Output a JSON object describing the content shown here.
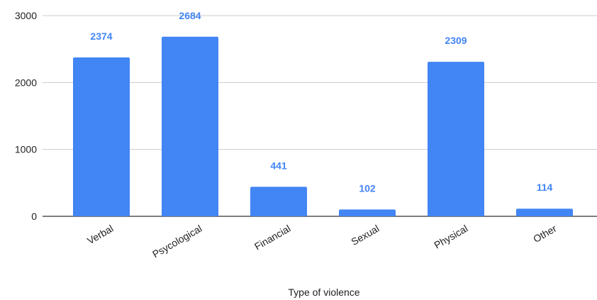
{
  "chart_data": {
    "type": "bar",
    "categories": [
      "Verbal",
      "Psycological",
      "Financial",
      "Sexual",
      "Physical",
      "Other"
    ],
    "values": [
      2374,
      2684,
      441,
      102,
      2309,
      114
    ],
    "data_labels": [
      "2374",
      "2684",
      "441",
      "102",
      "2309",
      "114"
    ],
    "title": "",
    "xlabel": "Type of violence",
    "ylabel": "",
    "ylim": [
      0,
      3000
    ],
    "yticks": [
      0,
      1000,
      2000,
      3000
    ],
    "ytick_labels": [
      "0",
      "1000",
      "2000",
      "3000"
    ],
    "grid": true,
    "legend": "none",
    "colors": {
      "bar": "#4285f4",
      "label": "#4285f4",
      "grid": "#cccccc"
    }
  }
}
